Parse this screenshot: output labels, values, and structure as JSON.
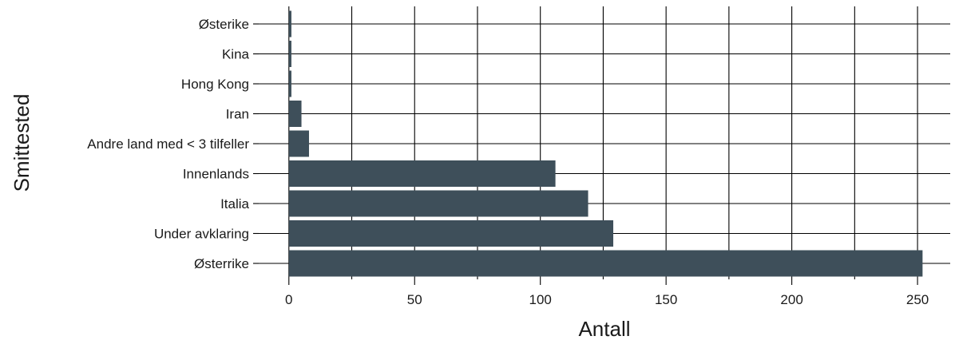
{
  "chart_data": {
    "type": "bar",
    "orientation": "horizontal",
    "categories": [
      "Østerike",
      "Kina",
      "Hong Kong",
      "Iran",
      "Andre land med < 3 tilfeller",
      "Innenlands",
      "Italia",
      "Under avklaring",
      "Østerrike"
    ],
    "values": [
      1,
      1,
      1,
      5,
      8,
      106,
      119,
      129,
      252
    ],
    "xlabel": "Antall",
    "ylabel": "Smittested",
    "xlim": [
      -12,
      263
    ],
    "xticks": [
      0,
      50,
      100,
      150,
      200,
      250
    ],
    "grid": true,
    "legend": "none",
    "bar_color": "#3e4f5a",
    "gridline_color": "#000000"
  }
}
